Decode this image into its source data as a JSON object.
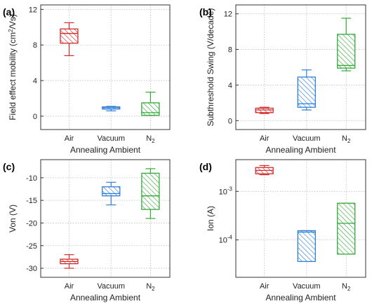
{
  "colors": {
    "air": "#d42a2a",
    "vacuum": "#2f7fd8",
    "n2": "#35a83a",
    "grid": "#bdbdbd",
    "axis": "#333333"
  },
  "chart_data": [
    {
      "type": "box",
      "panel_label": "(a)",
      "title": "",
      "xlabel": "Annealing Ambient",
      "ylabel": "Field effect mobility (cm²/Vs)",
      "ylabel_parts": [
        "Field effect mobility (cm",
        "2",
        "/Vs)"
      ],
      "yscale": "linear",
      "ylim": [
        -1.5,
        12.5
      ],
      "yticks": [
        0,
        4,
        8,
        12
      ],
      "ytick_labels": [
        "0",
        "4",
        "8",
        "12"
      ],
      "grid": true,
      "categories": [
        "Air",
        "Vacuum",
        "N2"
      ],
      "category_labels": [
        [
          "Air",
          ""
        ],
        [
          "Vacuum",
          ""
        ],
        [
          "N",
          "2"
        ]
      ],
      "boxes": [
        {
          "category": "Air",
          "whisker_low": 6.8,
          "q1": 8.2,
          "median": 9.3,
          "q3": 9.8,
          "whisker_high": 10.5
        },
        {
          "category": "Vacuum",
          "whisker_low": 0.6,
          "q1": 0.8,
          "median": 0.95,
          "q3": 1.05,
          "whisker_high": 1.1
        },
        {
          "category": "N2",
          "whisker_low": 0.1,
          "q1": 0.1,
          "median": 0.4,
          "q3": 1.5,
          "whisker_high": 2.7
        }
      ]
    },
    {
      "type": "box",
      "panel_label": "(b)",
      "title": "",
      "xlabel": "Annealing Ambient",
      "ylabel": "Subthreshold Swing (V/decade)",
      "ylabel_parts": [
        "Subthreshold Swing (V/decade)",
        "",
        ""
      ],
      "yscale": "linear",
      "ylim": [
        -1,
        13
      ],
      "yticks": [
        0,
        4,
        8,
        12
      ],
      "ytick_labels": [
        "0",
        "4",
        "8",
        "12"
      ],
      "grid": true,
      "categories": [
        "Air",
        "Vacuum",
        "N2"
      ],
      "category_labels": [
        [
          "Air",
          ""
        ],
        [
          "Vacuum",
          ""
        ],
        [
          "N",
          "2"
        ]
      ],
      "boxes": [
        {
          "category": "Air",
          "whisker_low": 0.8,
          "q1": 0.9,
          "median": 1.2,
          "q3": 1.4,
          "whisker_high": 1.5
        },
        {
          "category": "Vacuum",
          "whisker_low": 1.2,
          "q1": 1.5,
          "median": 1.9,
          "q3": 4.9,
          "whisker_high": 5.7
        },
        {
          "category": "N2",
          "whisker_low": 5.6,
          "q1": 5.9,
          "median": 6.2,
          "q3": 9.7,
          "whisker_high": 11.5
        }
      ]
    },
    {
      "type": "box",
      "panel_label": "(c)",
      "title": "",
      "xlabel": "Annealing Ambient",
      "ylabel": "Von (V)",
      "ylabel_parts": [
        "Von (V)",
        "",
        ""
      ],
      "yscale": "linear",
      "ylim": [
        -32,
        -6
      ],
      "yticks": [
        -30,
        -25,
        -20,
        -15,
        -10
      ],
      "ytick_labels": [
        "-30",
        "-25",
        "-20",
        "-15",
        "-10"
      ],
      "grid": true,
      "categories": [
        "Air",
        "Vacuum",
        "N2"
      ],
      "category_labels": [
        [
          "Air",
          ""
        ],
        [
          "Vacuum",
          ""
        ],
        [
          "N",
          "2"
        ]
      ],
      "boxes": [
        {
          "category": "Air",
          "whisker_low": -30.0,
          "q1": -29.0,
          "median": -28.5,
          "q3": -28.0,
          "whisker_high": -27.0
        },
        {
          "category": "Vacuum",
          "whisker_low": -16.0,
          "q1": -14.0,
          "median": -13.5,
          "q3": -12.0,
          "whisker_high": -11.0
        },
        {
          "category": "N2",
          "whisker_low": -19.0,
          "q1": -17.0,
          "median": -14.0,
          "q3": -9.0,
          "whisker_high": -8.0
        }
      ]
    },
    {
      "type": "box",
      "panel_label": "(d)",
      "title": "",
      "xlabel": "Annealing Ambient",
      "ylabel": "Ion (A)",
      "ylabel_parts": [
        "Ion (A)",
        "",
        ""
      ],
      "yscale": "log",
      "ylim": [
        1.7e-05,
        0.0045
      ],
      "yticks": [
        0.0001,
        0.001
      ],
      "ytick_labels": [
        [
          "10",
          "-4"
        ],
        [
          "10",
          "-3"
        ]
      ],
      "grid": true,
      "categories": [
        "Air",
        "Vacuum",
        "N2"
      ],
      "category_labels": [
        [
          "Air",
          ""
        ],
        [
          "Vacuum",
          ""
        ],
        [
          "N",
          "2"
        ]
      ],
      "boxes": [
        {
          "category": "Air",
          "whisker_low": 0.0022,
          "q1": 0.0023,
          "median": 0.0027,
          "q3": 0.0031,
          "whisker_high": 0.0034
        },
        {
          "category": "Vacuum",
          "whisker_low": 3.6e-05,
          "q1": 3.6e-05,
          "median": 0.000145,
          "q3": 0.000155,
          "whisker_high": 0.000155
        },
        {
          "category": "N2",
          "whisker_low": 5.1e-05,
          "q1": 5.1e-05,
          "median": 0.00022,
          "q3": 0.00057,
          "whisker_high": 0.00057
        }
      ]
    }
  ]
}
